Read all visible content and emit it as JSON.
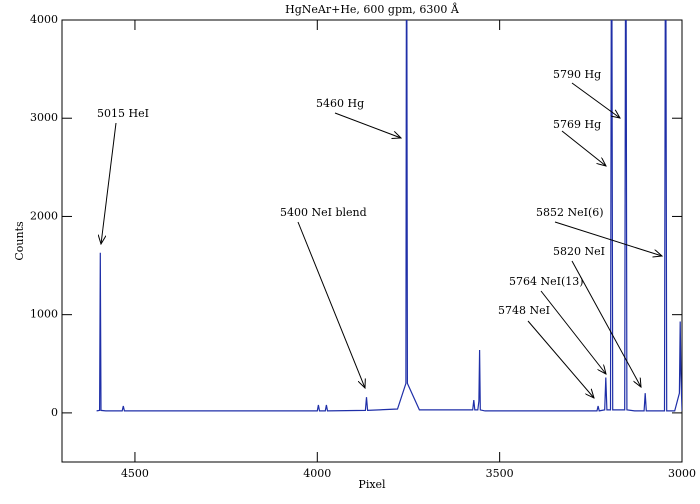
{
  "chart_data": {
    "type": "line",
    "title": "HgNeAr+He, 600 gpm, 6300 Å",
    "xlabel": "Pixel",
    "ylabel": "Counts",
    "xlim": [
      4700,
      3000
    ],
    "ylim": [
      -500,
      4000
    ],
    "xticks": [
      4500,
      4000,
      3500,
      3000
    ],
    "yticks": [
      0,
      1000,
      2000,
      3000,
      4000
    ],
    "series": [
      {
        "color": "#1f2fa8",
        "x": [
          4605,
          4597,
          4595,
          4593,
          4580,
          4535,
          4532,
          4529,
          4400,
          4000,
          3997,
          3994,
          3978,
          3975,
          3972,
          3868,
          3865,
          3862,
          3780,
          3757,
          3755,
          3753,
          3720,
          3574,
          3571,
          3568,
          3560,
          3557,
          3555,
          3553,
          3540,
          3400,
          3233,
          3230,
          3227,
          3212,
          3209,
          3206,
          3196,
          3193,
          3190,
          3157,
          3154,
          3151,
          3130,
          3104,
          3101,
          3098,
          3048,
          3045,
          3042,
          3020,
          3007,
          3005,
          3003,
          3000
        ],
        "values": [
          20,
          25,
          1630,
          25,
          20,
          20,
          70,
          20,
          20,
          20,
          80,
          20,
          20,
          80,
          20,
          25,
          160,
          25,
          40,
          300,
          6000,
          300,
          30,
          30,
          130,
          30,
          30,
          120,
          640,
          30,
          20,
          20,
          20,
          70,
          20,
          30,
          360,
          30,
          30,
          6000,
          30,
          30,
          6000,
          30,
          20,
          20,
          200,
          20,
          20,
          6000,
          20,
          20,
          200,
          930,
          400,
          20
        ]
      }
    ],
    "annotations": [
      "5015 HeI",
      "5460 Hg",
      "5400 NeI blend",
      "5790 Hg",
      "5769 Hg",
      "5852 NeI(6)",
      "5820 NeI",
      "5764 NeI(13)",
      "5748 NeI"
    ]
  }
}
